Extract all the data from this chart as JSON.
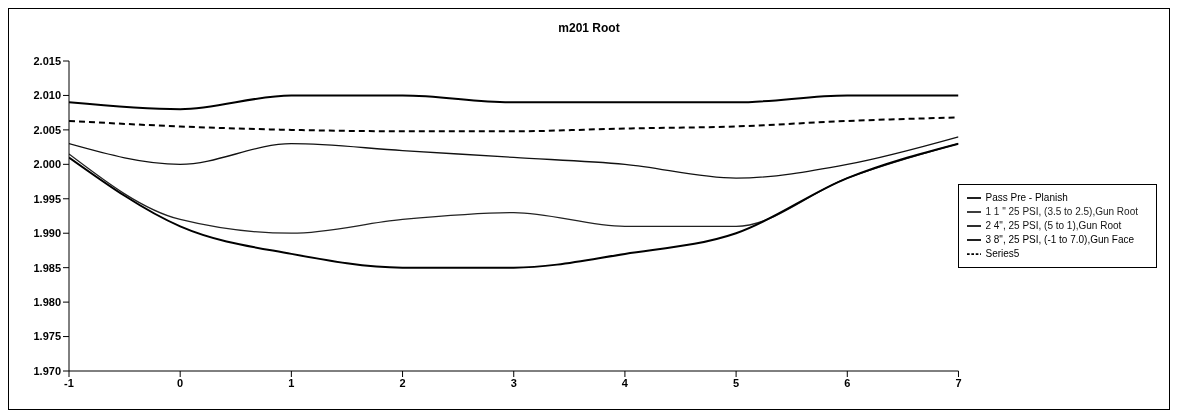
{
  "chart_data": {
    "type": "line",
    "title": "m201 Root",
    "x": [
      -1,
      0,
      1,
      2,
      3,
      4,
      5,
      6,
      7
    ],
    "xlim": [
      -1,
      7
    ],
    "xticks": [
      -1,
      0,
      1,
      2,
      3,
      4,
      5,
      6,
      7
    ],
    "ylim": [
      1.97,
      2.015
    ],
    "yticks": [
      {
        "value": 1.97,
        "label": "1.970"
      },
      {
        "value": 1.975,
        "label": "1.975"
      },
      {
        "value": 1.98,
        "label": "1.980"
      },
      {
        "value": 1.985,
        "label": "1.985"
      },
      {
        "value": 1.99,
        "label": "1.990"
      },
      {
        "value": 1.995,
        "label": "1.995"
      },
      {
        "value": 2.0,
        "label": "2.000"
      },
      {
        "value": 2.005,
        "label": "2.005"
      },
      {
        "value": 2.01,
        "label": "2.010"
      },
      {
        "value": 2.015,
        "label": "2.015"
      }
    ],
    "grid": false,
    "legend": "right",
    "marker": "none",
    "series": [
      {
        "name": "Pass Pre - Planish",
        "color": "#000000",
        "line_style": "solid",
        "values": [
          2.009,
          2.008,
          2.01,
          2.01,
          2.009,
          2.009,
          2.009,
          2.01,
          2.01
        ]
      },
      {
        "name": "1 1 \" 25 PSI, (3.5 to 2.5),Gun Root",
        "color": "#222222",
        "line_style": "solid",
        "values": [
          2.0015,
          1.992,
          1.99,
          1.992,
          1.993,
          1.991,
          1.991,
          1.998,
          2.003
        ]
      },
      {
        "name": "2 4\", 25 PSI, (5 to 1),Gun Root",
        "color": "#111111",
        "line_style": "solid",
        "values": [
          2.003,
          2.0,
          2.003,
          2.002,
          2.001,
          2.0,
          1.998,
          2.0,
          2.004
        ]
      },
      {
        "name": "3 8\", 25 PSI, (-1 to 7.0),Gun Face",
        "color": "#000000",
        "line_style": "solid",
        "values": [
          2.001,
          1.991,
          1.987,
          1.985,
          1.985,
          1.987,
          1.99,
          1.998,
          2.003
        ]
      },
      {
        "name": "Series5",
        "color": "#000000",
        "line_style": "dashed",
        "values": [
          2.0063,
          2.0055,
          2.005,
          2.0048,
          2.0048,
          2.0052,
          2.0055,
          2.0063,
          2.0068
        ]
      }
    ]
  }
}
